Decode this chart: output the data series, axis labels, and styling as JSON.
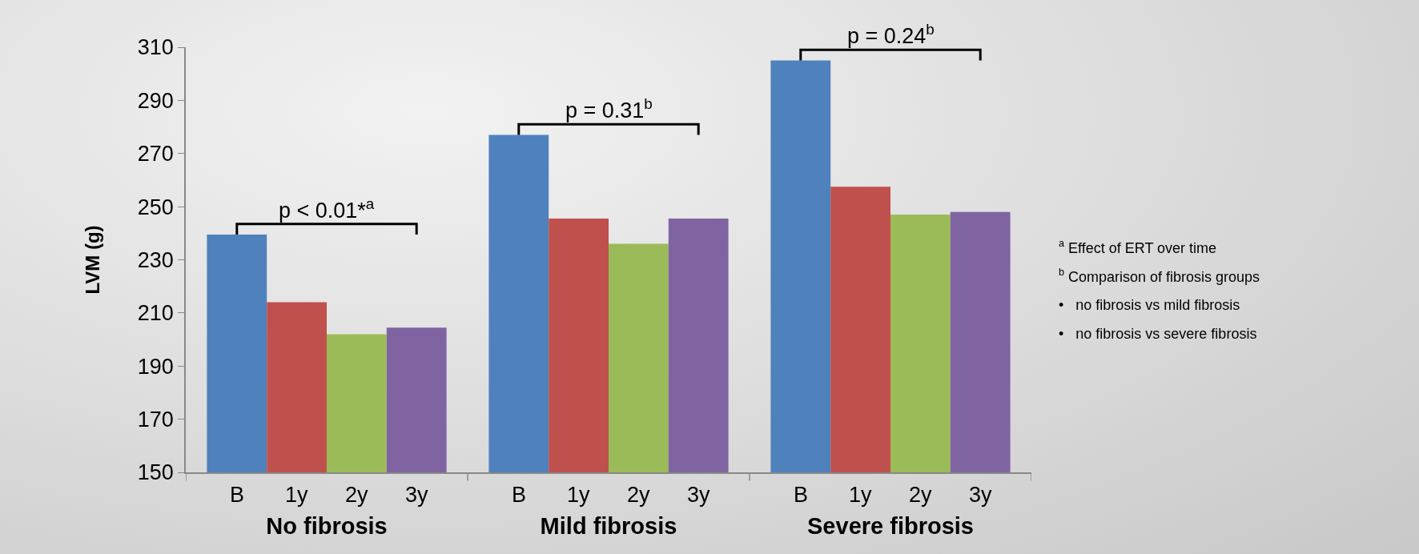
{
  "chart_data": {
    "type": "bar",
    "ylabel": "LVM (g)",
    "categories": [
      "No fibrosis",
      "Mild fibrosis",
      "Severe fibrosis"
    ],
    "series": [
      {
        "name": "B",
        "color": "#4f81bd",
        "values": [
          239.5,
          277,
          305
        ]
      },
      {
        "name": "1y",
        "color": "#c0504d",
        "values": [
          214,
          245.5,
          257.5
        ]
      },
      {
        "name": "2y",
        "color": "#9bbb59",
        "values": [
          202,
          236,
          247
        ]
      },
      {
        "name": "3y",
        "color": "#8064a2",
        "values": [
          204.5,
          245.5,
          248
        ]
      }
    ],
    "ylim": [
      150,
      310
    ],
    "yticks": [
      150,
      170,
      190,
      210,
      230,
      250,
      270,
      290,
      310
    ],
    "grid": false,
    "legend": false,
    "annotations": [
      "p < 0.01*$^{a}$",
      "p = 0.31$^{b}$",
      "p = 0.24$^{b}$",
      "$^{a}$ Effect of ERT over time",
      "$^{b}$ Comparison of fibrosis groups",
      "•   no fibrosis vs mild fibrosis",
      "•   no fibrosis vs severe fibrosis"
    ]
  }
}
